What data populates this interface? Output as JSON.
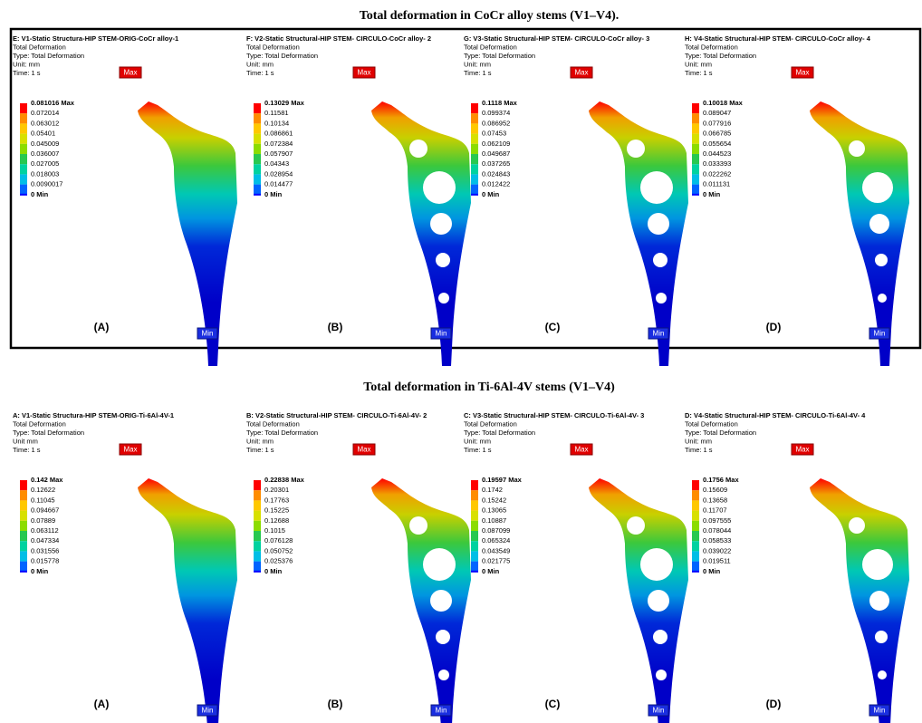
{
  "sections": [
    {
      "title": "Total deformation in CoCr alloy stems (V1–V4).",
      "panels": [
        {
          "header": [
            "E: V1-Static Structura-HIP  STEM-ORIG-CoCr alloy-1",
            "Total Deformation",
            "Type: Total Deformation",
            "Unit: mm",
            "Time: 1 s"
          ],
          "legend": [
            "0.081016 Max",
            "0.072014",
            "0.063012",
            "0.05401",
            "0.045009",
            "0.036007",
            "0.027005",
            "0.018003",
            "0.0090017",
            "0 Min"
          ],
          "max_tag": "Max",
          "min_tag": "Min",
          "label": "(A)"
        },
        {
          "header": [
            "F: V2-Static Structural-HIP STEM- CIRCULO-CoCr alloy- 2",
            "Total Deformation",
            "Type: Total Deformation",
            "Unit: mm",
            "Time: 1 s"
          ],
          "legend": [
            "0.13029 Max",
            "0.11581",
            "0.10134",
            "0.086861",
            "0.072384",
            "0.057907",
            "0.04343",
            "0.028954",
            "0.014477",
            "0 Min"
          ],
          "max_tag": "Max",
          "min_tag": "Min",
          "label": "(B)"
        },
        {
          "header": [
            "G: V3-Static Structural-HIP STEM- CIRCULO-CoCr alloy- 3",
            "Total Deformation",
            "Type: Total Deformation",
            "Unit: mm",
            "Time: 1 s"
          ],
          "legend": [
            "0.1118 Max",
            "0.099374",
            "0.086952",
            "0.07453",
            "0.062109",
            "0.049687",
            "0.037265",
            "0.024843",
            "0.012422",
            "0 Min"
          ],
          "max_tag": "Max",
          "min_tag": "Min",
          "label": "(C)"
        },
        {
          "header": [
            "H: V4-Static Structural-HIP STEM- CIRCULO-CoCr alloy- 4",
            "Total Deformation",
            "Type: Total Deformation",
            "Unit: mm",
            "Time: 1 s"
          ],
          "legend": [
            "0.10018 Max",
            "0.089047",
            "0.077916",
            "0.066785",
            "0.055654",
            "0.044523",
            "0.033393",
            "0.022262",
            "0.011131",
            "0 Min"
          ],
          "max_tag": "Max",
          "min_tag": "Min",
          "label": "(D)"
        }
      ]
    },
    {
      "title": "Total deformation in Ti-6Al-4V stems (V1–V4)",
      "panels": [
        {
          "header": [
            "A: V1-Static Structura-HIP STEM-ORIG-Ti-6Al-4V-1",
            "Total Deformation",
            "Type: Total Deformation",
            "Unit mm",
            "Time: 1 s"
          ],
          "legend": [
            "0.142 Max",
            "0.12622",
            "0.11045",
            "0.094667",
            "0.07889",
            "0.063112",
            "0.047334",
            "0.031556",
            "0.015778",
            "0 Min"
          ],
          "max_tag": "Max",
          "min_tag": "Min",
          "label": "(A)"
        },
        {
          "header": [
            "B: V2-Static Structural-HIP STEM- CIRCULO-Ti-6Al-4V- 2",
            "Total Deformation",
            "Type: Total Deformation",
            "Unit: mm",
            "Time: 1 s"
          ],
          "legend": [
            "0.22838 Max",
            "0.20301",
            "0.17763",
            "0.15225",
            "0.12688",
            "0.1015",
            "0.076128",
            "0.050752",
            "0.025376",
            "0 Min"
          ],
          "max_tag": "Max",
          "min_tag": "Min",
          "label": "(B)"
        },
        {
          "header": [
            "C: V3-Static Structural-HIP STEM- CIRCULO-Ti-6Al-4V- 3",
            "Total Deformation",
            "Type: Total Deformation",
            "Unit: mm",
            "Time: 1 s"
          ],
          "legend": [
            "0.19597 Max",
            "0.1742",
            "0.15242",
            "0.13065",
            "0.10887",
            "0.087099",
            "0.065324",
            "0.043549",
            "0.021775",
            "0 Min"
          ],
          "max_tag": "Max",
          "min_tag": "Min",
          "label": "(C)"
        },
        {
          "header": [
            "D: V4-Static Structural-HIP STEM- CIRCULO-Ti-6Al-4V- 4",
            "Total Deformation",
            "Type: Total Deformation",
            "Unit: mm",
            "Time: 1 s"
          ],
          "legend": [
            "0.1756 Max",
            "0.15609",
            "0.13658",
            "0.11707",
            "0.097555",
            "0.078044",
            "0.058533",
            "0.039022",
            "0.019511",
            "0 Min"
          ],
          "max_tag": "Max",
          "min_tag": "Min",
          "label": "(D)"
        }
      ]
    }
  ]
}
